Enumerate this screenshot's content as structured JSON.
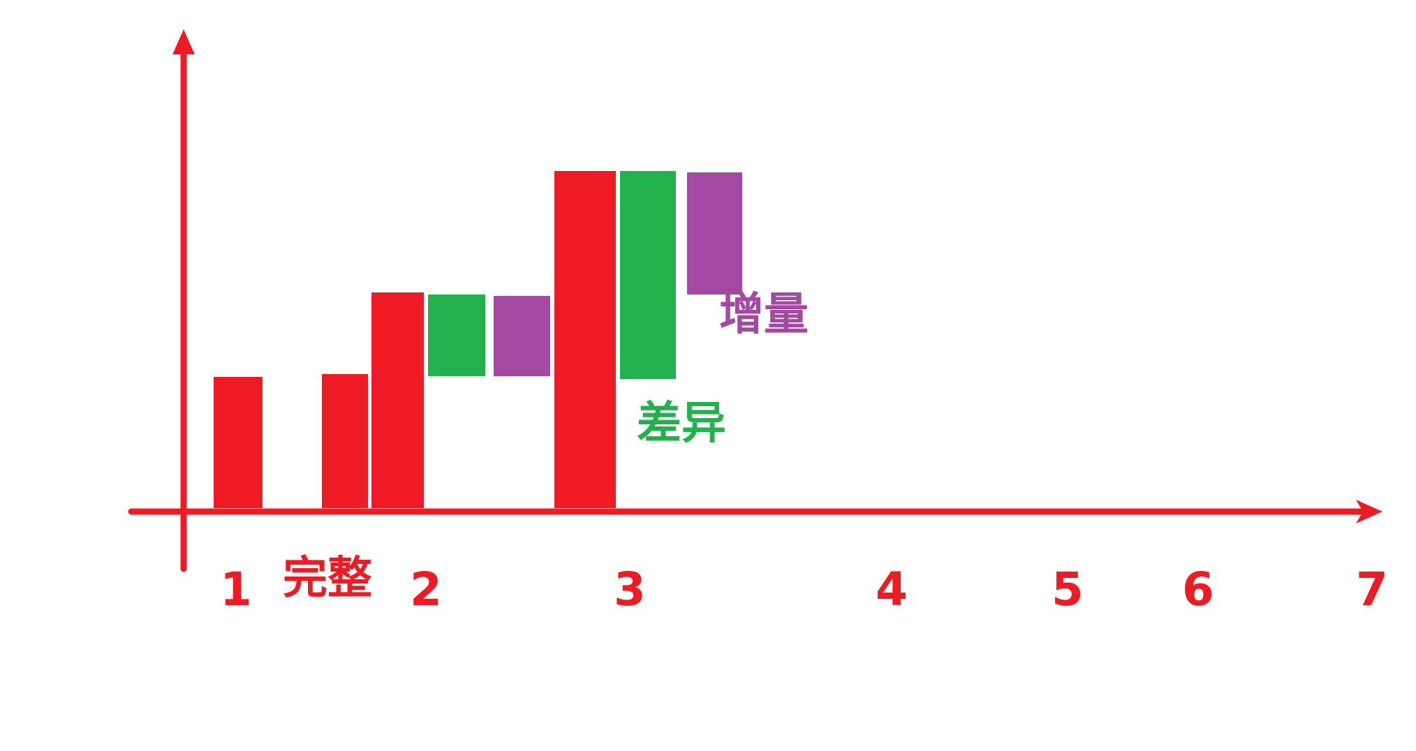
{
  "colors": {
    "axis": "#ed1c24",
    "full": "#ed1c24",
    "diff": "#22b14c",
    "incr": "#a349a4",
    "background": "#ffffff"
  },
  "x_labels": [
    "1",
    "2",
    "3",
    "4",
    "5",
    "6",
    "7"
  ],
  "labels": {
    "full": "完整",
    "diff": "差异",
    "incr": "增量"
  },
  "bars": [
    {
      "kind": "full",
      "name": "full-bar-1a"
    },
    {
      "kind": "full",
      "name": "full-bar-1b"
    },
    {
      "kind": "full",
      "name": "full-bar-2"
    },
    {
      "kind": "diff",
      "name": "diff-bar-2"
    },
    {
      "kind": "incr",
      "name": "incr-bar-2"
    },
    {
      "kind": "full",
      "name": "full-bar-3"
    },
    {
      "kind": "diff",
      "name": "diff-bar-3"
    },
    {
      "kind": "incr",
      "name": "incr-bar-3"
    }
  ]
}
